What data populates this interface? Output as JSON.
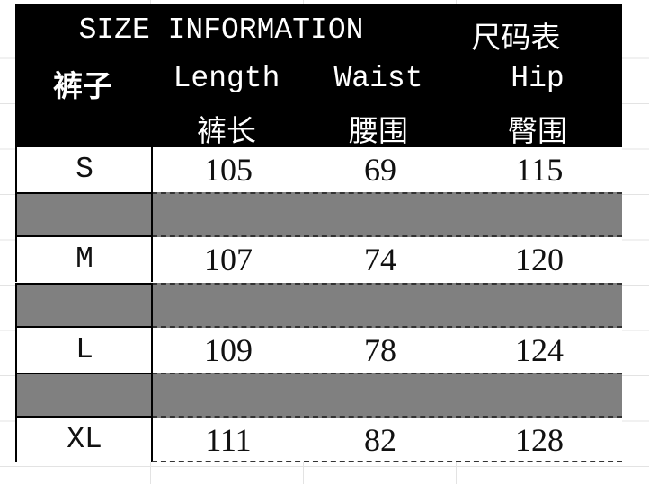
{
  "header": {
    "title": "SIZE INFORMATION",
    "title_cn": "尺码表",
    "item_cn": "裤子",
    "columns": [
      {
        "en": "Length",
        "cn": "裤长"
      },
      {
        "en": "Waist",
        "cn": "腰围"
      },
      {
        "en": "Hip",
        "cn": "臀围"
      }
    ]
  },
  "rows": [
    {
      "size": "S",
      "length": "105",
      "waist": "69",
      "hip": "115"
    },
    {
      "size": "M",
      "length": "107",
      "waist": "74",
      "hip": "120"
    },
    {
      "size": "L",
      "length": "109",
      "waist": "78",
      "hip": "124"
    },
    {
      "size": "XL",
      "length": "111",
      "waist": "82",
      "hip": "128"
    }
  ],
  "colors": {
    "header_bg": "#000000",
    "spacer_row": "#808080"
  }
}
